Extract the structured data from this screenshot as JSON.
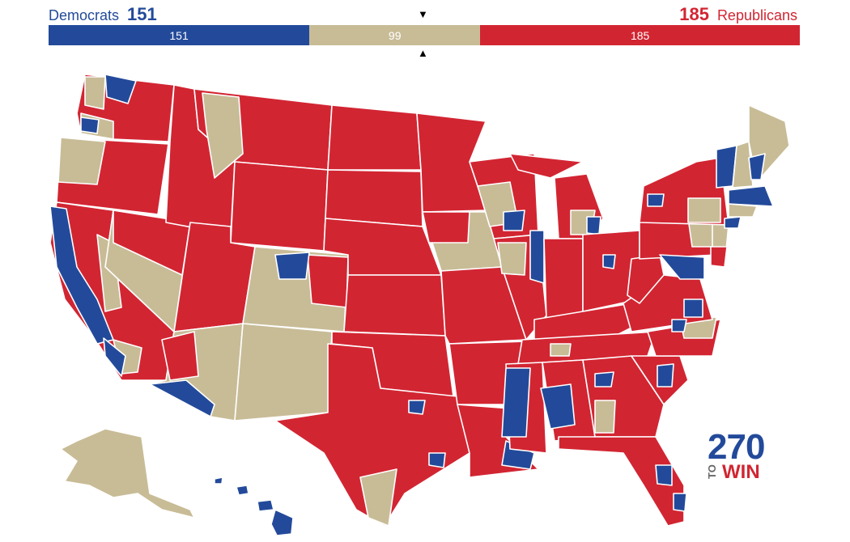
{
  "header": {
    "dem_label": "Democrats",
    "dem_count": "151",
    "rep_label": "Republicans",
    "rep_count": "185"
  },
  "bar": {
    "dem_value": 151,
    "tossup_value": 99,
    "rep_value": 185,
    "dem_text": "151",
    "tossup_text": "99",
    "rep_text": "185"
  },
  "markers": {
    "top": "▼",
    "bottom": "▲"
  },
  "colors": {
    "democrat": "#234a9a",
    "republican": "#d22532",
    "tossup": "#c8bc97",
    "border": "#ffffff"
  },
  "logo": {
    "number": "270",
    "to": "TO",
    "win": "WIN"
  }
}
